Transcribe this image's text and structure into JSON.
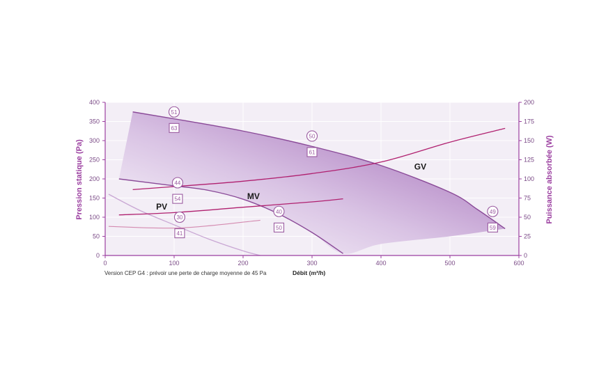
{
  "chart_data": {
    "type": "line",
    "xlabel": "Débit (m³/h)",
    "ylabel_left": "Pression statique (Pa)",
    "ylabel_right": "Puissance absorbée (W)",
    "note": "Version CEP G4 : prévoir une perte de charge moyenne de 45 Pa",
    "xlim": [
      0,
      600
    ],
    "ylim_left": [
      0,
      400
    ],
    "ylim_right": [
      0,
      200
    ],
    "x_ticks": [
      "0",
      "100",
      "200",
      "300",
      "400",
      "500",
      "600"
    ],
    "y_left_ticks": [
      "0",
      "50",
      "100",
      "150",
      "200",
      "250",
      "300",
      "350",
      "400"
    ],
    "y_right_ticks": [
      "0",
      "25",
      "50",
      "75",
      "100",
      "125",
      "150",
      "175",
      "200"
    ],
    "grid": true,
    "colors": {
      "axis": "#9b3fa0",
      "pressure_curve": "#8a4a98",
      "power_curve": "#b0206f",
      "area_dark": "#9a5eb0",
      "area_light": "#ffffff",
      "plot_bg": "#f3eef6",
      "marker": "#9a5aa0"
    },
    "pressure_series": [
      {
        "name": "GV",
        "x": [
          40,
          100,
          200,
          300,
          400,
          500,
          540,
          580
        ],
        "y": [
          375,
          357,
          325,
          285,
          235,
          165,
          120,
          70
        ]
      },
      {
        "name": "MV",
        "x": [
          20,
          100,
          150,
          200,
          250,
          300,
          345
        ],
        "y": [
          200,
          182,
          170,
          147,
          110,
          60,
          5
        ]
      },
      {
        "name": "PV",
        "x": [
          5,
          50,
          100,
          150,
          200,
          225
        ],
        "y": [
          160,
          118,
          80,
          43,
          12,
          0
        ]
      }
    ],
    "power_series": [
      {
        "name": "GV",
        "x": [
          40,
          100,
          200,
          300,
          400,
          500,
          580
        ],
        "y": [
          86,
          90,
          97,
          107,
          122,
          148,
          166
        ]
      },
      {
        "name": "MV",
        "x": [
          20,
          100,
          200,
          300,
          345
        ],
        "y": [
          53,
          56,
          63,
          70,
          74
        ]
      },
      {
        "name": "PV",
        "x": [
          5,
          110,
          225
        ],
        "y": [
          38,
          36,
          46
        ]
      }
    ],
    "operating_area": {
      "x": [
        40,
        100,
        200,
        300,
        400,
        500,
        540,
        580,
        500,
        400,
        345,
        300,
        250,
        200,
        150,
        100,
        20
      ],
      "y": [
        375,
        357,
        325,
        285,
        235,
        165,
        120,
        70,
        50,
        30,
        5,
        60,
        110,
        147,
        170,
        182,
        200
      ]
    },
    "markers": [
      {
        "shape": "circle",
        "label": "51",
        "x": 100,
        "y": 375
      },
      {
        "shape": "square",
        "label": "63",
        "x": 100,
        "y": 333
      },
      {
        "shape": "circle",
        "label": "50",
        "x": 300,
        "y": 312
      },
      {
        "shape": "square",
        "label": "61",
        "x": 300,
        "y": 270
      },
      {
        "shape": "circle",
        "label": "44",
        "x": 105,
        "y": 190
      },
      {
        "shape": "square",
        "label": "54",
        "x": 105,
        "y": 148
      },
      {
        "shape": "circle",
        "label": "40",
        "x": 252,
        "y": 115
      },
      {
        "shape": "square",
        "label": "50",
        "x": 252,
        "y": 73
      },
      {
        "shape": "circle",
        "label": "30",
        "x": 108,
        "y": 100
      },
      {
        "shape": "square",
        "label": "41",
        "x": 108,
        "y": 58
      },
      {
        "shape": "circle",
        "label": "49",
        "x": 562,
        "y": 115
      },
      {
        "shape": "square",
        "label": "59",
        "x": 562,
        "y": 73
      }
    ],
    "curve_labels": [
      {
        "text": "GV",
        "x": 457,
        "y": 232
      },
      {
        "text": "MV",
        "x": 215,
        "y": 155
      },
      {
        "text": "PV",
        "x": 82,
        "y": 127
      }
    ]
  }
}
